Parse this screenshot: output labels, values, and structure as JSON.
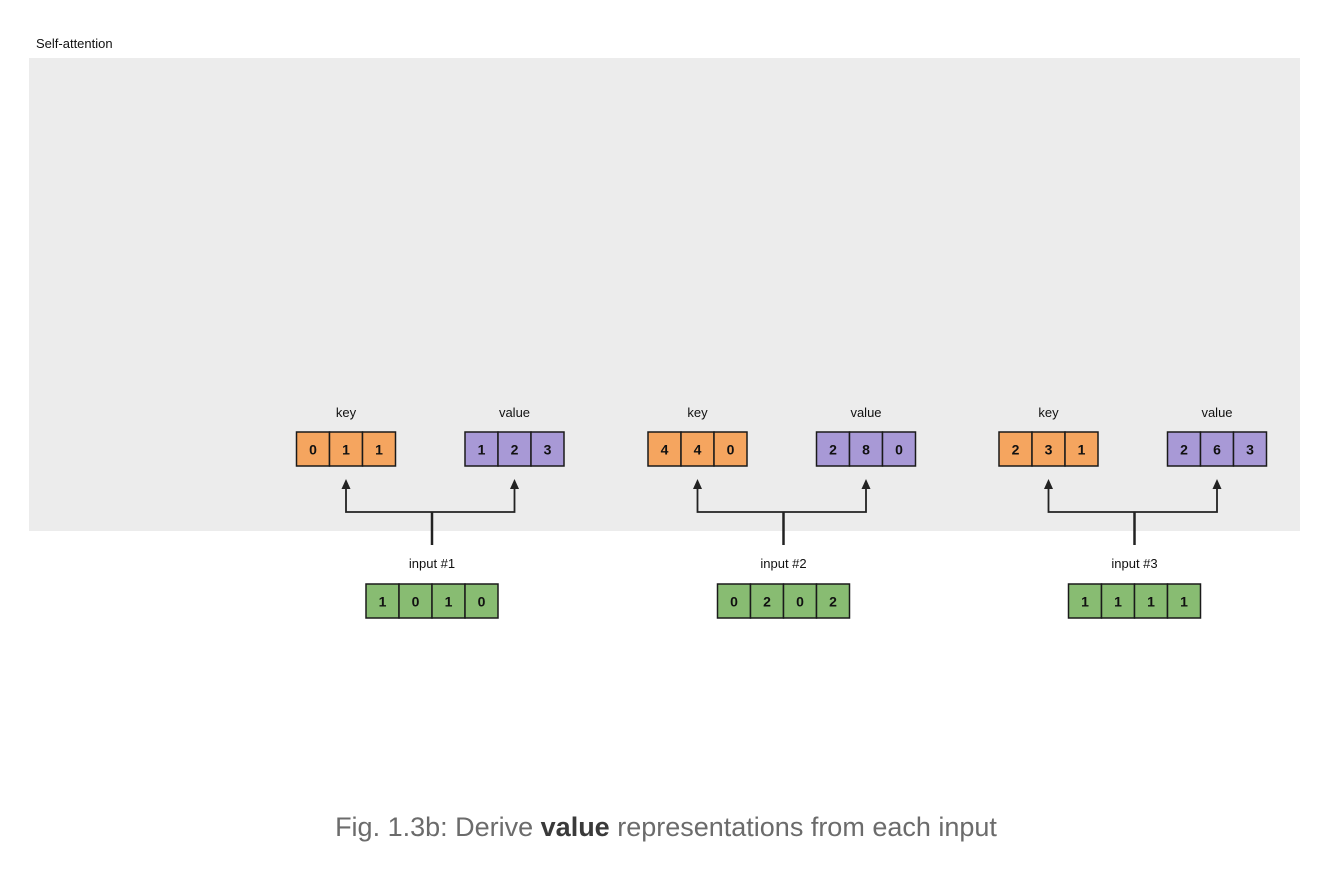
{
  "panel_label": "Self-attention",
  "colors": {
    "panel_bg": "#ececec",
    "key_fill": "#f5a55f",
    "value_fill": "#a899d6",
    "input_fill": "#88bc72",
    "stroke": "#1a1a1a",
    "arrow": "#222222"
  },
  "groups": [
    {
      "input_label": "input #1",
      "input": [
        "1",
        "0",
        "1",
        "0"
      ],
      "key_label": "key",
      "key": [
        "0",
        "1",
        "1"
      ],
      "value_label": "value",
      "value": [
        "1",
        "2",
        "3"
      ]
    },
    {
      "input_label": "input #2",
      "input": [
        "0",
        "2",
        "0",
        "2"
      ],
      "key_label": "key",
      "key": [
        "4",
        "4",
        "0"
      ],
      "value_label": "value",
      "value": [
        "2",
        "8",
        "0"
      ]
    },
    {
      "input_label": "input #3",
      "input": [
        "1",
        "1",
        "1",
        "1"
      ],
      "key_label": "key",
      "key": [
        "2",
        "3",
        "1"
      ],
      "value_label": "value",
      "value": [
        "2",
        "6",
        "3"
      ]
    }
  ],
  "caption": {
    "prefix": "Fig. 1.3b: Derive ",
    "bold": "value",
    "suffix": " representations from each input"
  }
}
